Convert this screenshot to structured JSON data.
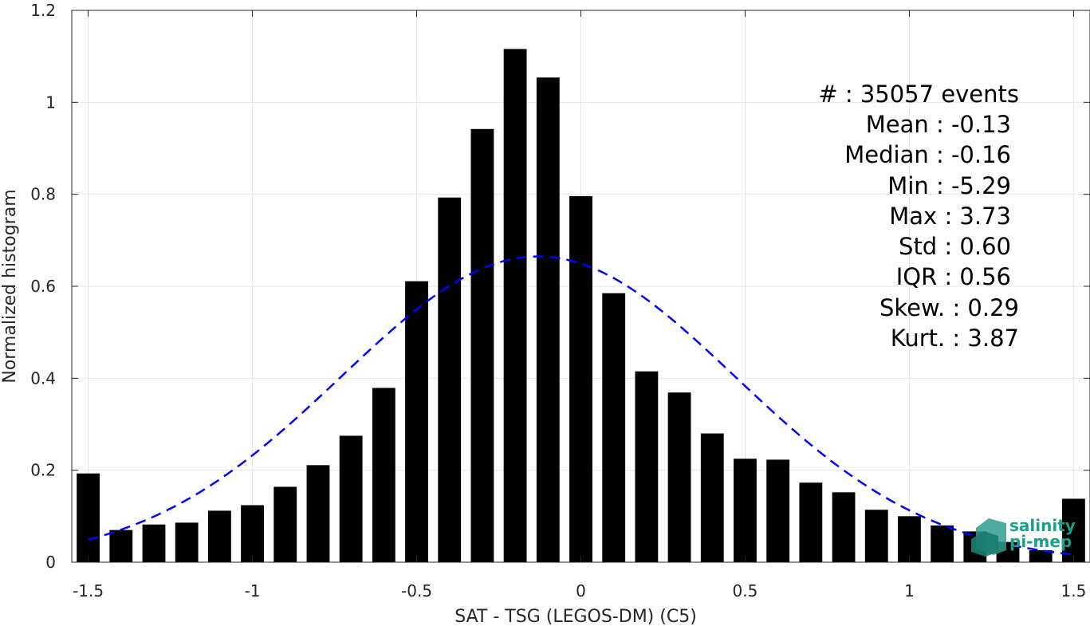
{
  "chart_data": {
    "type": "bar",
    "xlabel": "SAT - TSG (LEGOS-DM) (C5)",
    "ylabel": "Normalized histogram",
    "xlim": [
      -1.55,
      1.55
    ],
    "ylim": [
      0,
      1.2
    ],
    "grid": true,
    "x_ticks": [
      -1.5,
      -1,
      -0.5,
      0,
      0.5,
      1,
      1.5
    ],
    "x_tick_labels": [
      "-1.5",
      "-1",
      "-0.5",
      "0",
      "0.5",
      "1",
      "1.5"
    ],
    "y_ticks": [
      0,
      0.2,
      0.4,
      0.6,
      0.8,
      1,
      1.2
    ],
    "y_tick_labels": [
      "0",
      "0.2",
      "0.4",
      "0.6",
      "0.8",
      "1",
      "1.2"
    ],
    "bar_width": 0.07,
    "x": [
      -1.5,
      -1.4,
      -1.3,
      -1.2,
      -1.1,
      -1.0,
      -0.9,
      -0.8,
      -0.7,
      -0.6,
      -0.5,
      -0.4,
      -0.3,
      -0.2,
      -0.1,
      0.0,
      0.1,
      0.2,
      0.3,
      0.4,
      0.5,
      0.6,
      0.7,
      0.8,
      0.9,
      1.0,
      1.1,
      1.2,
      1.3,
      1.4,
      1.5
    ],
    "values": [
      0.193,
      0.07,
      0.082,
      0.086,
      0.112,
      0.124,
      0.164,
      0.211,
      0.275,
      0.379,
      0.611,
      0.793,
      0.942,
      1.116,
      1.054,
      0.796,
      0.585,
      0.415,
      0.369,
      0.28,
      0.225,
      0.223,
      0.173,
      0.152,
      0.114,
      0.1,
      0.08,
      0.067,
      0.044,
      0.026,
      0.138
    ],
    "bar_color": "#000000",
    "fit": {
      "type": "normal",
      "mean": -0.13,
      "std": 0.6,
      "x_range": [
        -1.5,
        1.5
      ],
      "color": "#0000ff",
      "style": "dashed"
    },
    "annotations": [
      "#  : 35057 events",
      "Mean : -0.13",
      "Median : -0.16",
      "Min : -5.29",
      "Max : 3.73",
      "Std : 0.60",
      "IQR : 0.56",
      "Skew. : 0.29",
      "Kurt. : 3.87"
    ]
  },
  "logo": {
    "line1": "salinity",
    "line2": "pi-mep",
    "color": "#1aa08a"
  }
}
